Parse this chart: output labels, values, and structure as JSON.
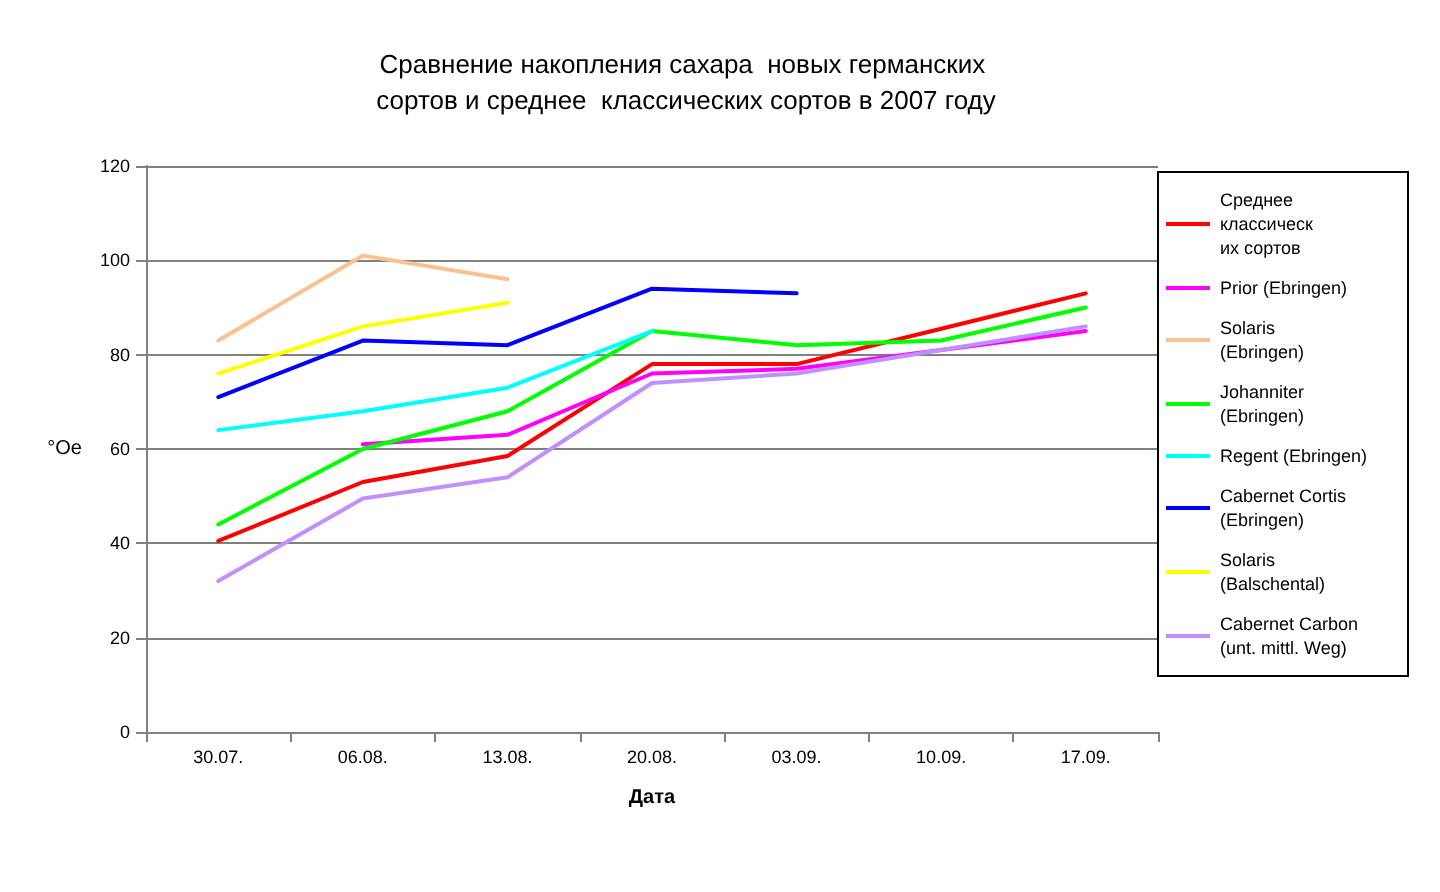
{
  "chart_data": {
    "type": "line",
    "title": "Сравнение накопления сахара  новых германских сортов и среднее  классических сортов в 2007 году",
    "xlabel": "Дата",
    "ylabel": "°Oe",
    "categories": [
      "30.07.",
      "06.08.",
      "13.08.",
      "20.08.",
      "03.09.",
      "10.09.",
      "17.09."
    ],
    "ylim": [
      0,
      120
    ],
    "yticks": [
      0,
      20,
      40,
      60,
      80,
      100,
      120
    ],
    "grid": "y",
    "legend": "right",
    "marker": "none",
    "line_style": "solid",
    "series": [
      {
        "name": "Среднее классических сортов",
        "color": "#ff0000",
        "values": [
          40.5,
          53,
          58.5,
          78,
          78,
          85.5,
          93
        ]
      },
      {
        "name": "Prior (Ebringen)",
        "color": "#ff00ff",
        "values": [
          null,
          61,
          63,
          76,
          77,
          81,
          85
        ]
      },
      {
        "name": "Solaris (Ebringen)",
        "color": "#ffc090",
        "values": [
          83,
          101,
          96,
          null,
          null,
          null,
          null
        ]
      },
      {
        "name": "Johanniter (Ebringen)",
        "color": "#00ff00",
        "values": [
          44,
          60,
          68,
          85,
          82,
          83,
          90
        ]
      },
      {
        "name": "Regent (Ebringen)",
        "color": "#00ffff",
        "values": [
          64,
          68,
          73,
          85,
          null,
          null,
          null
        ]
      },
      {
        "name": "Cabernet Cortis (Ebringen)",
        "color": "#0000ff",
        "values": [
          71,
          83,
          82,
          94,
          93,
          null,
          null
        ]
      },
      {
        "name": "Solaris (Balschental)",
        "color": "#ffff00",
        "values": [
          76,
          86,
          91,
          null,
          null,
          null,
          null
        ]
      },
      {
        "name": "Cabernet Carbon (unt. mittl. Weg)",
        "color": "#c090ff",
        "values": [
          32,
          49.5,
          54,
          74,
          76,
          81,
          86
        ]
      }
    ]
  }
}
